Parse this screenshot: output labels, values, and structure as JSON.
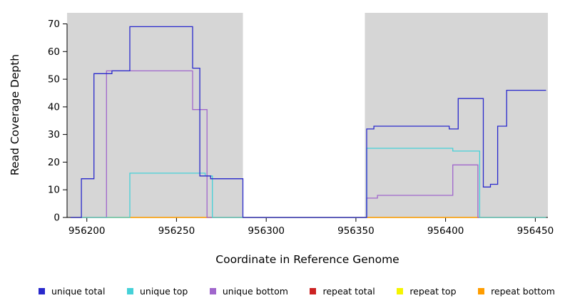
{
  "chart_data": {
    "type": "line",
    "step_style": "step-after",
    "title": "",
    "xlabel": "Coordinate in Reference Genome",
    "ylabel": "Read Coverage Depth",
    "xlim": [
      956189,
      956457
    ],
    "ylim": [
      0,
      74
    ],
    "xticks": [
      956200,
      956250,
      956300,
      956350,
      956400,
      956450
    ],
    "yticks": [
      0,
      10,
      20,
      30,
      40,
      50,
      60,
      70
    ],
    "grid": false,
    "legend_position": "bottom",
    "background_regions": [
      {
        "x0": 956189,
        "x1": 956287,
        "color": "#d6d6d6",
        "label": "shaded-region-left"
      },
      {
        "x0": 956287,
        "x1": 956355,
        "color": "#ffffff",
        "label": "gap-region"
      },
      {
        "x0": 956355,
        "x1": 956457,
        "color": "#d6d6d6",
        "label": "shaded-region-right"
      }
    ],
    "draw_order": [
      3,
      4,
      5,
      2,
      1,
      0
    ],
    "series": [
      {
        "name": "unique total",
        "color": "#2929cc",
        "points": [
          [
            956191,
            0
          ],
          [
            956197,
            14
          ],
          [
            956204,
            52
          ],
          [
            956214,
            53
          ],
          [
            956224,
            69
          ],
          [
            956259,
            54
          ],
          [
            956263,
            15
          ],
          [
            956269,
            14
          ],
          [
            956287,
            0
          ],
          [
            956356,
            32
          ],
          [
            956360,
            33
          ],
          [
            956402,
            32
          ],
          [
            956407,
            43
          ],
          [
            956421,
            11
          ],
          [
            956425,
            12
          ],
          [
            956429,
            33
          ],
          [
            956434,
            46
          ],
          [
            956456,
            46
          ]
        ]
      },
      {
        "name": "unique top",
        "color": "#45d1d8",
        "points": [
          [
            956191,
            0
          ],
          [
            956224,
            16
          ],
          [
            956266,
            15
          ],
          [
            956270,
            0
          ],
          [
            956356,
            25
          ],
          [
            956404,
            24
          ],
          [
            956419,
            0
          ],
          [
            956456,
            0
          ]
        ]
      },
      {
        "name": "unique bottom",
        "color": "#a066cc",
        "points": [
          [
            956191,
            0
          ],
          [
            956211,
            53
          ],
          [
            956259,
            39
          ],
          [
            956267,
            0
          ],
          [
            956356,
            7
          ],
          [
            956362,
            8
          ],
          [
            956404,
            19
          ],
          [
            956418,
            0
          ],
          [
            956456,
            0
          ]
        ]
      },
      {
        "name": "repeat total",
        "color": "#cc2222",
        "points": [
          [
            956191,
            0
          ],
          [
            956456,
            0
          ]
        ]
      },
      {
        "name": "repeat top",
        "color": "#f5f500",
        "points": [
          [
            956191,
            0
          ],
          [
            956456,
            0
          ]
        ]
      },
      {
        "name": "repeat bottom",
        "color": "#ff9d00",
        "points": [
          [
            956191,
            0
          ],
          [
            956456,
            0
          ]
        ]
      }
    ]
  },
  "colors": {
    "axis": "#000000",
    "text": "#000000",
    "plot_shaded_bg": "#d6d6d6"
  }
}
